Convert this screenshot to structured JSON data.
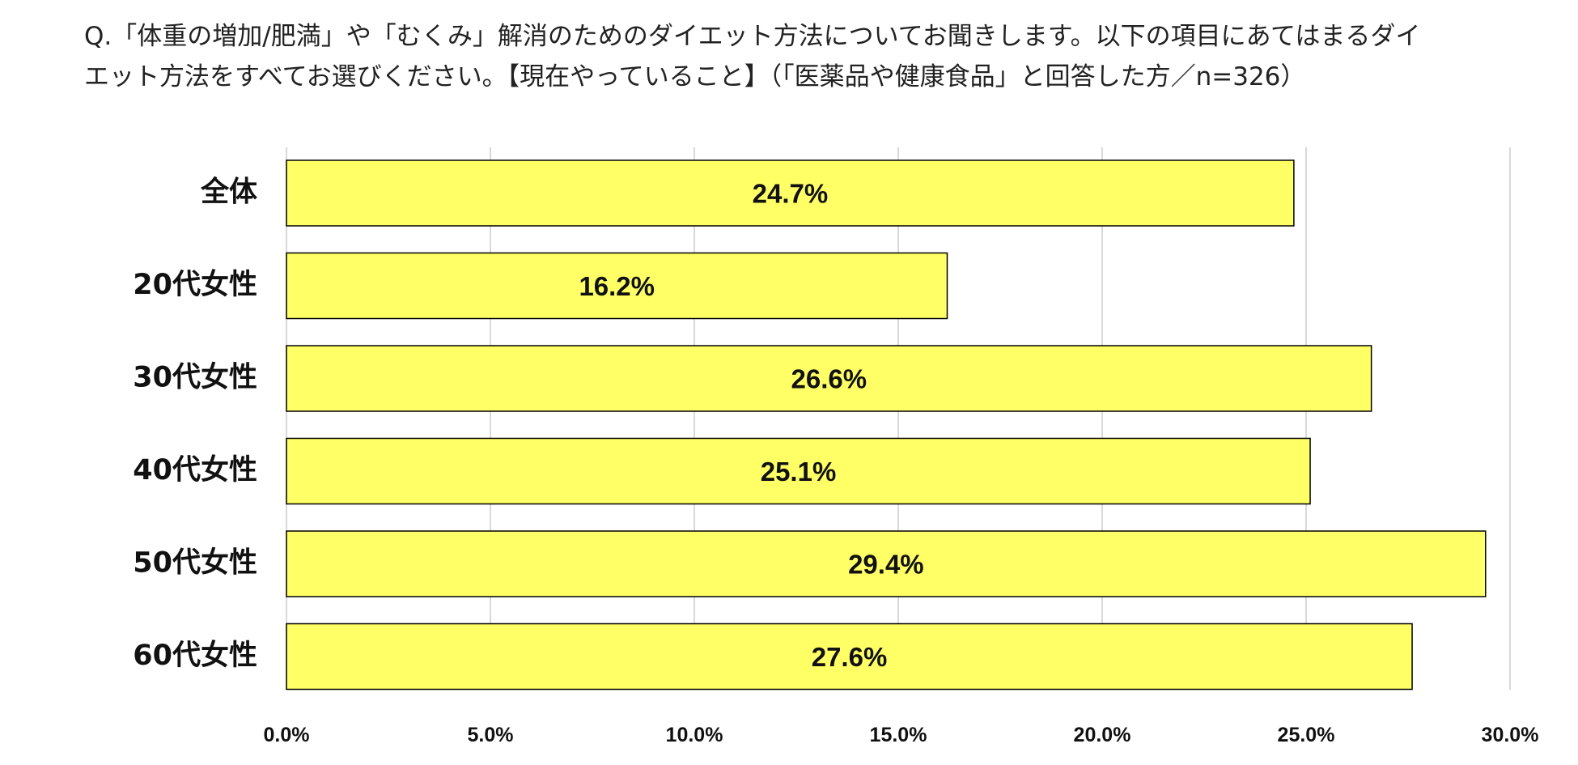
{
  "title_lines": [
    "Q.「体重の増加/肥満」や「むくみ」解消のためのダイエット方法についてお聞きします。以下の項目にあてはまるダイ",
    "エット方法をすべてお選びください。【現在やっていること】（「医薬品や健康食品」と回答した方／n=326）"
  ],
  "chart_data": {
    "type": "bar",
    "orientation": "horizontal",
    "title": "Q.「体重の増加/肥満」や「むくみ」解消のためのダイエット方法についてお聞きします。以下の項目にあてはまるダイエット方法をすべてお選びください。【現在やっていること】（「医薬品や健康食品」と回答した方／n=326）",
    "categories": [
      "全体",
      "20代女性",
      "30代女性",
      "40代女性",
      "50代女性",
      "60代女性"
    ],
    "values": [
      24.7,
      16.2,
      26.6,
      25.1,
      29.4,
      27.6
    ],
    "value_labels": [
      "24.7%",
      "16.2%",
      "26.6%",
      "25.1%",
      "29.4%",
      "27.6%"
    ],
    "xlim": [
      0,
      30
    ],
    "xticks": [
      0,
      5,
      10,
      15,
      20,
      25,
      30
    ],
    "xtick_labels": [
      "0.0%",
      "5.0%",
      "10.0%",
      "15.0%",
      "20.0%",
      "25.0%",
      "30.0%"
    ],
    "xlabel": "",
    "ylabel": "",
    "grid": true,
    "legend": "none",
    "bar_color": "#ffff66",
    "bar_edge_color": "#000000",
    "grid_color": "#d9d9d9"
  }
}
